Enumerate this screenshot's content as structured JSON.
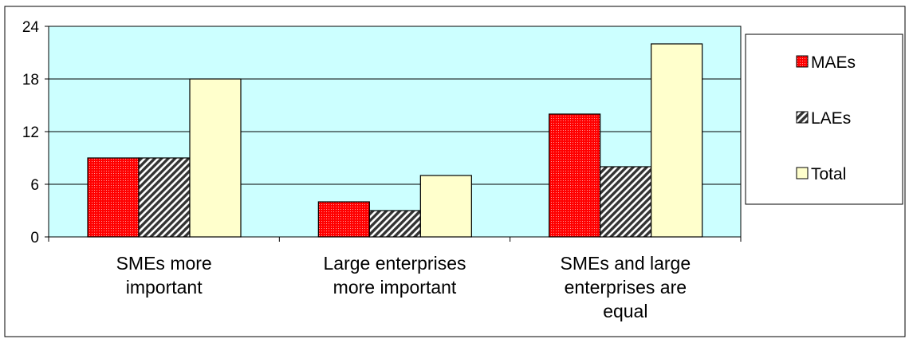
{
  "chart_data": {
    "type": "bar",
    "title": "",
    "xlabel": "",
    "ylabel": "",
    "ylim": [
      0,
      24
    ],
    "yticks": [
      0,
      6,
      12,
      18,
      24
    ],
    "grid": true,
    "legend_position": "right",
    "categories": [
      [
        "SMEs more",
        "important"
      ],
      [
        "Large enterprises",
        "more important"
      ],
      [
        "SMEs and large",
        "enterprises are",
        "equal"
      ]
    ],
    "series": [
      {
        "name": "MAEs",
        "values": [
          9,
          4,
          14
        ],
        "color": "#ff0000",
        "pattern": "dotted"
      },
      {
        "name": "LAEs",
        "values": [
          9,
          3,
          8
        ],
        "color": "#333333",
        "pattern": "diagonal-hatch"
      },
      {
        "name": "Total",
        "values": [
          18,
          7,
          22
        ],
        "color": "#ffffcc",
        "pattern": "solid"
      }
    ],
    "colors": {
      "plot_background": "#ccffff",
      "gridline": "#000000"
    }
  }
}
